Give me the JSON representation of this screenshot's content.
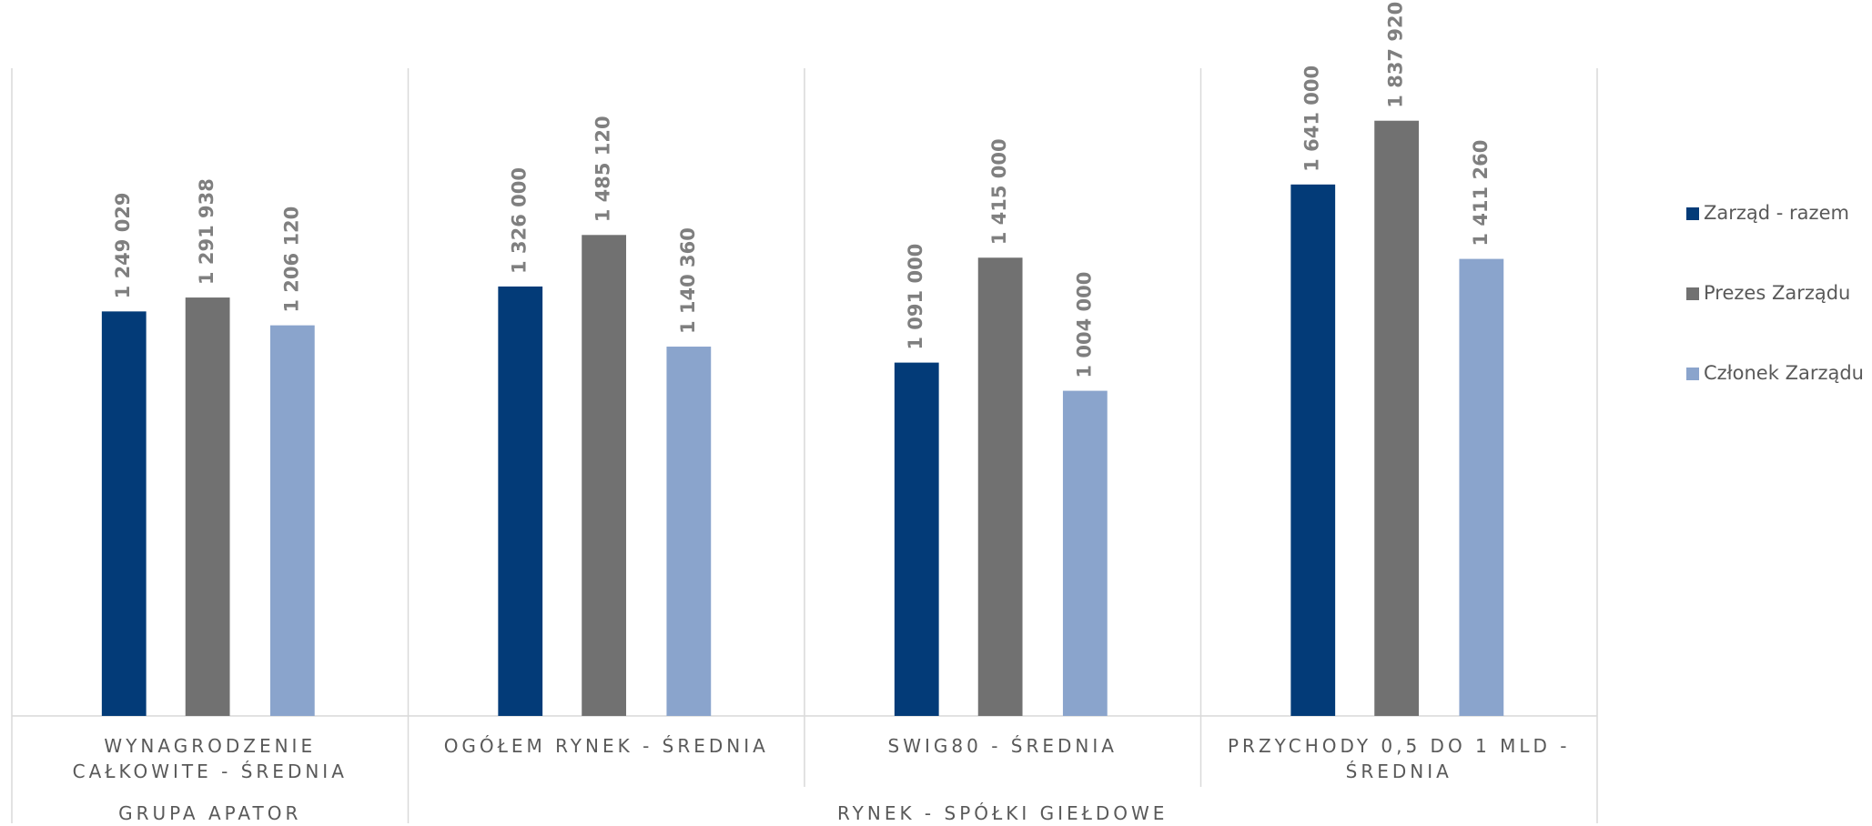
{
  "chart_data": {
    "type": "bar",
    "categories": [
      "WYNAGRODZENIE CAŁKOWITE - ŚREDNIA",
      "OGÓŁEM RYNEK - ŚREDNIA",
      "SWIG80 - ŚREDNIA",
      "PRZYCHODY 0,5 DO 1 MLD - ŚREDNIA"
    ],
    "category_groups": [
      "GRUPA APATOR",
      "RYNEK - SPÓŁKI GIEŁDOWE",
      "RYNEK - SPÓŁKI GIEŁDOWE",
      "RYNEK - SPÓŁKI GIEŁDOWE"
    ],
    "series": [
      {
        "name": "Zarząd - razem",
        "color": "#033b78",
        "values": [
          1249029,
          1326000,
          1091000,
          1641000
        ],
        "value_labels": [
          "1 249 029",
          "1 326 000",
          "1 091 000",
          "1 641 000"
        ]
      },
      {
        "name": "Prezes Zarządu",
        "color": "#717171",
        "values": [
          1291938,
          1485120,
          1415000,
          1837920
        ],
        "value_labels": [
          "1 291 938",
          "1 485 120",
          "1 415 000",
          "1 837 920"
        ]
      },
      {
        "name": "Członek Zarządu",
        "color": "#8aa4cc",
        "values": [
          1206120,
          1140360,
          1004000,
          1411260
        ],
        "value_labels": [
          "1 206 120",
          "1 140 360",
          "1 004 000",
          "1 411 260"
        ]
      }
    ],
    "ylim": [
      0,
      2000000
    ],
    "legend": "right"
  }
}
